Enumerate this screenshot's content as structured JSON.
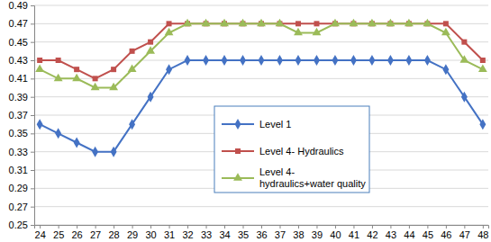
{
  "chart_data": {
    "type": "line",
    "categories": [
      "24",
      "25",
      "26",
      "27",
      "28",
      "29",
      "30",
      "31",
      "32",
      "33",
      "34",
      "35",
      "36",
      "37",
      "38",
      "39",
      "40",
      "41",
      "42",
      "43",
      "44",
      "45",
      "46",
      "47",
      "48"
    ],
    "series": [
      {
        "name": "Level 1",
        "color": "#4472c4",
        "marker": "diamond",
        "line_style": "solid",
        "values": [
          0.36,
          0.35,
          0.34,
          0.33,
          0.33,
          0.36,
          0.39,
          0.42,
          0.43,
          0.43,
          0.43,
          0.43,
          0.43,
          0.43,
          0.43,
          0.43,
          0.43,
          0.43,
          0.43,
          0.43,
          0.43,
          0.43,
          0.42,
          0.39,
          0.36
        ]
      },
      {
        "name": "Level 4- Hydraulics",
        "color": "#c0504d",
        "marker": "square",
        "line_style": "solid",
        "values": [
          0.43,
          0.43,
          0.42,
          0.41,
          0.42,
          0.44,
          0.45,
          0.47,
          0.47,
          0.47,
          0.47,
          0.47,
          0.47,
          0.47,
          0.47,
          0.47,
          0.47,
          0.47,
          0.47,
          0.47,
          0.47,
          0.47,
          0.47,
          0.45,
          0.43
        ]
      },
      {
        "name": "Level 4- hydraulics+water quality",
        "color": "#9bbb59",
        "marker": "triangle",
        "line_style": "solid",
        "values": [
          0.42,
          0.41,
          0.41,
          0.4,
          0.4,
          0.42,
          0.44,
          0.46,
          0.47,
          0.47,
          0.47,
          0.47,
          0.47,
          0.47,
          0.46,
          0.46,
          0.47,
          0.47,
          0.47,
          0.47,
          0.47,
          0.47,
          0.46,
          0.43,
          0.42
        ]
      }
    ],
    "ylim": [
      0.25,
      0.49
    ],
    "yticks": [
      0.25,
      0.27,
      0.29,
      0.31,
      0.33,
      0.35,
      0.37,
      0.39,
      0.41,
      0.43,
      0.45,
      0.47,
      0.49
    ],
    "grid": true,
    "legend": "center"
  }
}
